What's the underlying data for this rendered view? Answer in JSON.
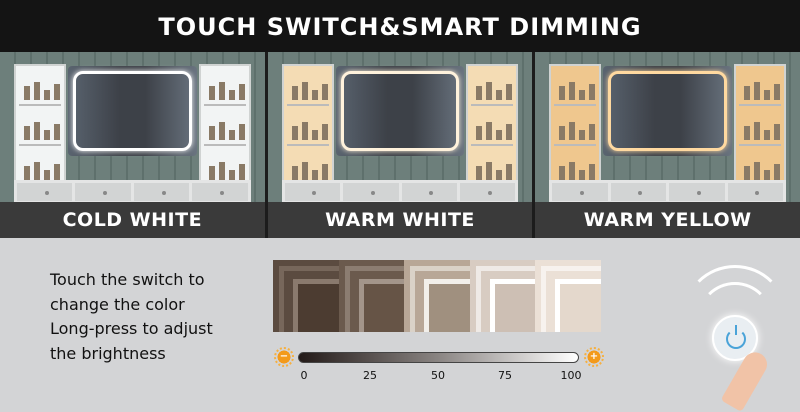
{
  "title": "TOUCH SWITCH&SMART DIMMING",
  "modes": [
    {
      "label": "COLD WHITE",
      "light": "#ffffff",
      "cab": "#f2f4f4"
    },
    {
      "label": "WARM WHITE",
      "light": "#fff2dc",
      "cab": "#f4dcb4"
    },
    {
      "label": "WARM YELLOW",
      "light": "#ffd9a0",
      "cab": "#efc78e"
    }
  ],
  "description": [
    "Touch the switch to",
    "change the color",
    "Long-press to adjust",
    "the brightness"
  ],
  "swatches": [
    {
      "outer": "#5b4b40",
      "frame": "#8a7a6e",
      "inner": "#4c3c31"
    },
    {
      "outer": "#6b5a4d",
      "frame": "#a3958a",
      "inner": "#665446"
    },
    {
      "outer": "#b8a797",
      "frame": "#f2efea",
      "inner": "#a0907f"
    },
    {
      "outer": "#d8ccc2",
      "frame": "#ffffff",
      "inner": "#cdbfb4"
    },
    {
      "outer": "#ebe0d6",
      "frame": "#ffffff",
      "inner": "#e4d8cc"
    }
  ],
  "brightness": {
    "ticks": [
      "0",
      "25",
      "50",
      "75",
      "100"
    ],
    "min_icon": "sun-minus-icon",
    "max_icon": "sun-plus-icon",
    "min_symbol": "−",
    "max_symbol": "+"
  },
  "touch_icon": "power-touch-icon"
}
